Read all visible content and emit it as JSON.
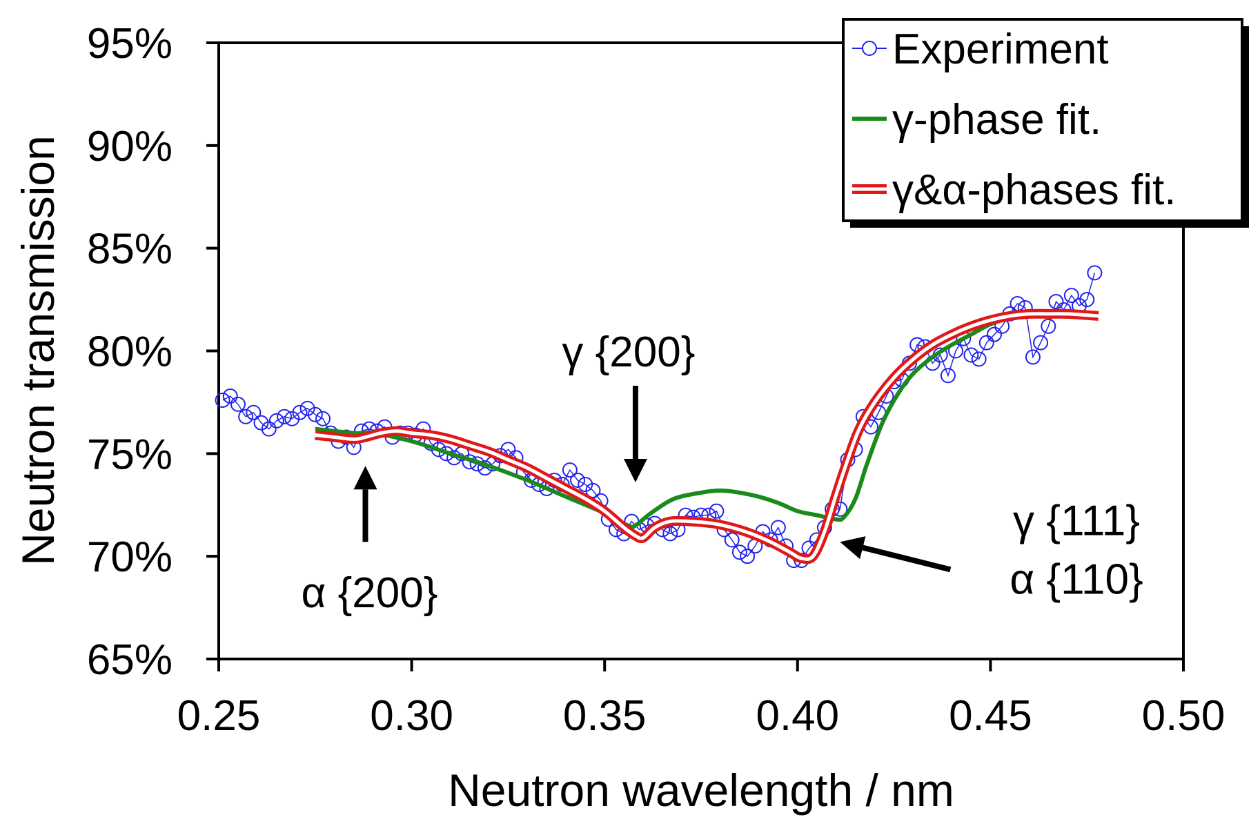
{
  "chart_data": {
    "type": "line",
    "title": "",
    "xlabel": "Neutron wavelength / nm",
    "ylabel": "Neutron transmission",
    "xlim": [
      0.25,
      0.5
    ],
    "ylim": [
      0.65,
      0.95
    ],
    "xticks": [
      "0.25",
      "0.30",
      "0.35",
      "0.40",
      "0.45",
      "0.50"
    ],
    "yticks": [
      "65%",
      "70%",
      "75%",
      "80%",
      "85%",
      "90%",
      "95%"
    ],
    "grid": false,
    "legend_position": "top-right",
    "series": [
      {
        "name": "Experiment",
        "color": "#2222ee",
        "marker": "open-circle",
        "x": [
          0.251,
          0.253,
          0.255,
          0.257,
          0.259,
          0.261,
          0.263,
          0.265,
          0.267,
          0.269,
          0.271,
          0.273,
          0.275,
          0.277,
          0.279,
          0.281,
          0.283,
          0.285,
          0.287,
          0.289,
          0.291,
          0.293,
          0.295,
          0.297,
          0.299,
          0.301,
          0.303,
          0.305,
          0.307,
          0.309,
          0.311,
          0.313,
          0.315,
          0.317,
          0.319,
          0.321,
          0.323,
          0.325,
          0.327,
          0.329,
          0.331,
          0.333,
          0.335,
          0.337,
          0.339,
          0.341,
          0.343,
          0.345,
          0.347,
          0.349,
          0.351,
          0.353,
          0.355,
          0.357,
          0.359,
          0.361,
          0.363,
          0.365,
          0.367,
          0.369,
          0.371,
          0.373,
          0.375,
          0.377,
          0.379,
          0.381,
          0.383,
          0.385,
          0.387,
          0.389,
          0.391,
          0.393,
          0.395,
          0.397,
          0.399,
          0.401,
          0.403,
          0.405,
          0.407,
          0.409,
          0.411,
          0.413,
          0.415,
          0.417,
          0.419,
          0.421,
          0.423,
          0.425,
          0.427,
          0.429,
          0.431,
          0.433,
          0.435,
          0.437,
          0.439,
          0.441,
          0.443,
          0.445,
          0.447,
          0.449,
          0.451,
          0.453,
          0.455,
          0.457,
          0.459,
          0.461,
          0.463,
          0.465,
          0.467,
          0.469,
          0.471,
          0.473,
          0.475,
          0.477
        ],
        "values": [
          0.776,
          0.778,
          0.774,
          0.768,
          0.77,
          0.765,
          0.762,
          0.766,
          0.768,
          0.767,
          0.77,
          0.772,
          0.769,
          0.767,
          0.76,
          0.756,
          0.758,
          0.753,
          0.761,
          0.762,
          0.761,
          0.763,
          0.758,
          0.76,
          0.76,
          0.759,
          0.762,
          0.755,
          0.752,
          0.75,
          0.748,
          0.75,
          0.746,
          0.745,
          0.743,
          0.745,
          0.749,
          0.752,
          0.748,
          0.741,
          0.737,
          0.735,
          0.733,
          0.737,
          0.735,
          0.742,
          0.737,
          0.735,
          0.732,
          0.727,
          0.718,
          0.713,
          0.711,
          0.717,
          0.713,
          0.715,
          0.716,
          0.713,
          0.711,
          0.713,
          0.72,
          0.719,
          0.72,
          0.72,
          0.722,
          0.713,
          0.708,
          0.702,
          0.7,
          0.705,
          0.712,
          0.708,
          0.714,
          0.705,
          0.698,
          0.698,
          0.704,
          0.708,
          0.714,
          0.723,
          0.723,
          0.747,
          0.752,
          0.768,
          0.763,
          0.77,
          0.778,
          0.785,
          0.786,
          0.794,
          0.803,
          0.802,
          0.794,
          0.798,
          0.788,
          0.8,
          0.806,
          0.798,
          0.796,
          0.804,
          0.808,
          0.812,
          0.818,
          0.823,
          0.821,
          0.797,
          0.804,
          0.812,
          0.824,
          0.82,
          0.827,
          0.822,
          0.825,
          0.838
        ]
      },
      {
        "name": "γ-phase fit.",
        "color": "#1a8a1a",
        "x": [
          0.275,
          0.285,
          0.29,
          0.3,
          0.31,
          0.32,
          0.33,
          0.34,
          0.35,
          0.356,
          0.358,
          0.362,
          0.368,
          0.375,
          0.38,
          0.385,
          0.39,
          0.395,
          0.4,
          0.405,
          0.41,
          0.412,
          0.415,
          0.418,
          0.422,
          0.426,
          0.43,
          0.435,
          0.44,
          0.445,
          0.45,
          0.455,
          0.46,
          0.465,
          0.47,
          0.478
        ],
        "values": [
          0.762,
          0.76,
          0.76,
          0.756,
          0.75,
          0.744,
          0.737,
          0.729,
          0.721,
          0.715,
          0.715,
          0.721,
          0.728,
          0.731,
          0.732,
          0.731,
          0.729,
          0.726,
          0.722,
          0.72,
          0.718,
          0.719,
          0.728,
          0.745,
          0.765,
          0.779,
          0.789,
          0.797,
          0.803,
          0.808,
          0.813,
          0.816,
          0.818,
          0.819,
          0.819,
          0.818
        ]
      },
      {
        "name": "γ&α-phases fit.",
        "color": "#e01818",
        "x": [
          0.275,
          0.28,
          0.285,
          0.288,
          0.292,
          0.296,
          0.3,
          0.305,
          0.31,
          0.315,
          0.32,
          0.325,
          0.33,
          0.335,
          0.34,
          0.345,
          0.35,
          0.355,
          0.358,
          0.36,
          0.363,
          0.367,
          0.372,
          0.378,
          0.383,
          0.388,
          0.393,
          0.398,
          0.401,
          0.404,
          0.407,
          0.41,
          0.413,
          0.416,
          0.42,
          0.425,
          0.43,
          0.435,
          0.44,
          0.445,
          0.45,
          0.455,
          0.46,
          0.465,
          0.47,
          0.478
        ],
        "values": [
          0.759,
          0.758,
          0.757,
          0.758,
          0.76,
          0.761,
          0.76,
          0.759,
          0.757,
          0.754,
          0.751,
          0.747,
          0.743,
          0.738,
          0.733,
          0.728,
          0.722,
          0.714,
          0.71,
          0.709,
          0.714,
          0.717,
          0.717,
          0.716,
          0.714,
          0.711,
          0.707,
          0.702,
          0.699,
          0.7,
          0.712,
          0.73,
          0.747,
          0.762,
          0.775,
          0.787,
          0.796,
          0.803,
          0.808,
          0.812,
          0.815,
          0.817,
          0.818,
          0.818,
          0.818,
          0.817
        ]
      }
    ],
    "annotations": [
      {
        "label": "α {200}",
        "x": 0.288,
        "y": 0.744,
        "arrow": "up"
      },
      {
        "label": "γ {200}",
        "x": 0.358,
        "y": 0.736,
        "arrow": "down"
      },
      {
        "label_lines": [
          "γ {111}",
          "α {110}"
        ],
        "x": 0.411,
        "y": 0.707,
        "arrow": "left"
      }
    ]
  }
}
